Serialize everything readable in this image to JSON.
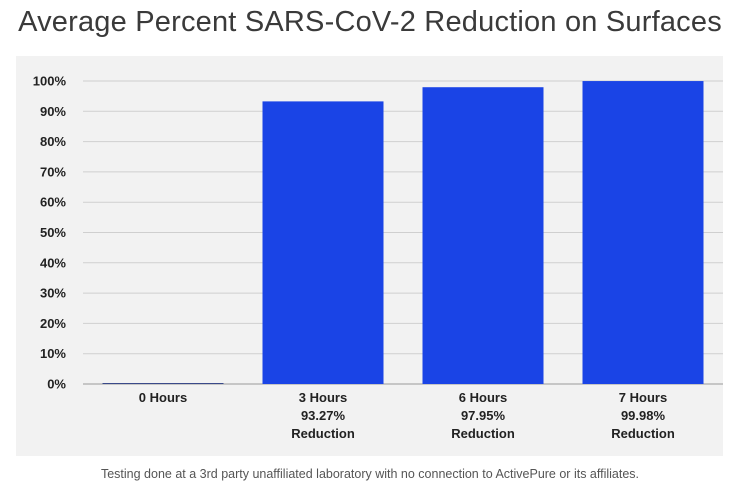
{
  "chart_data": {
    "type": "bar",
    "title": "Average Percent SARS-CoV-2 Reduction on Surfaces",
    "categories": [
      "0 Hours",
      "3 Hours",
      "6 Hours",
      "7 Hours"
    ],
    "values": [
      0,
      93.27,
      97.95,
      99.98
    ],
    "category_labels": [
      [
        "0 Hours"
      ],
      [
        "3 Hours",
        "93.27%",
        "Reduction"
      ],
      [
        "6 Hours",
        "97.95%",
        "Reduction"
      ],
      [
        "7 Hours",
        "99.98%",
        "Reduction"
      ]
    ],
    "ylim": [
      0,
      100
    ],
    "yticks": [
      0,
      10,
      20,
      30,
      40,
      50,
      60,
      70,
      80,
      90,
      100
    ],
    "ytick_labels": [
      "0%",
      "10%",
      "20%",
      "30%",
      "40%",
      "50%",
      "60%",
      "70%",
      "80%",
      "90%",
      "100%"
    ],
    "grid": true,
    "bar_color": "#1a44e6",
    "footnote": "Testing done at a 3rd party unaffiliated laboratory with no connection to ActivePure or its affiliates."
  }
}
